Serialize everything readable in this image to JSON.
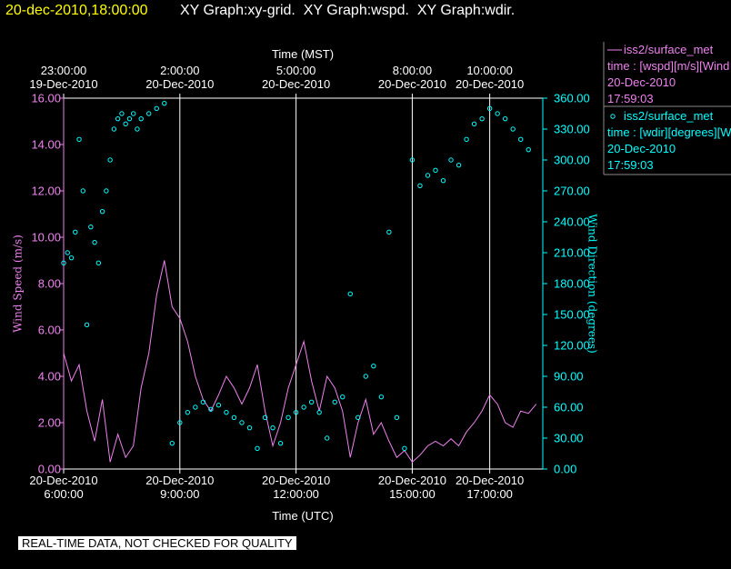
{
  "title_time": "20-dec-2010,18:00:00",
  "title": "XY Graph:xy-grid.  XY Graph:wspd.  XY Graph:wdir.",
  "notice": "REAL-TIME DATA, NOT CHECKED FOR QUALITY",
  "chart_data": {
    "type": "line",
    "xlabel": "Time (UTC)",
    "x2label": "Time (MST)",
    "ylabel": "Wind Speed (m/s)",
    "y2label": "Wind Direction (degrees)",
    "xlim": [
      6,
      18.37
    ],
    "ylim": [
      0,
      16
    ],
    "y2lim": [
      0,
      360
    ],
    "grid": true,
    "xticks": [
      {
        "value": 6,
        "label": "20-Dec-2010\n6:00:00"
      },
      {
        "value": 9,
        "label": "20-Dec-2010\n9:00:00"
      },
      {
        "value": 12,
        "label": "20-Dec-2010\n12:00:00"
      },
      {
        "value": 15,
        "label": "20-Dec-2010\n15:00:00"
      },
      {
        "value": 17,
        "label": "20-Dec-2010\n17:00:00"
      }
    ],
    "x2ticks": [
      {
        "value": 6,
        "label": "23:00:00\n19-Dec-2010"
      },
      {
        "value": 9,
        "label": "2:00:00\n20-Dec-2010"
      },
      {
        "value": 12,
        "label": "5:00:00\n20-Dec-2010"
      },
      {
        "value": 15,
        "label": "8:00:00\n20-Dec-2010"
      },
      {
        "value": 17,
        "label": "10:00:00\n20-Dec-2010"
      }
    ],
    "yticks": [
      {
        "value": 0,
        "label": "0.00"
      },
      {
        "value": 2,
        "label": "2.00"
      },
      {
        "value": 4,
        "label": "4.00"
      },
      {
        "value": 6,
        "label": "6.00"
      },
      {
        "value": 8,
        "label": "8.00"
      },
      {
        "value": 10,
        "label": "10.00"
      },
      {
        "value": 12,
        "label": "12.00"
      },
      {
        "value": 14,
        "label": "14.00"
      },
      {
        "value": 16,
        "label": "16.00"
      }
    ],
    "y2ticks": [
      {
        "value": 0,
        "label": "0.00"
      },
      {
        "value": 30,
        "label": "30.00"
      },
      {
        "value": 60,
        "label": "60.00"
      },
      {
        "value": 90,
        "label": "90.00"
      },
      {
        "value": 120,
        "label": "120.00"
      },
      {
        "value": 150,
        "label": "150.00"
      },
      {
        "value": 180,
        "label": "180.00"
      },
      {
        "value": 210,
        "label": "210.00"
      },
      {
        "value": 240,
        "label": "240.00"
      },
      {
        "value": 270,
        "label": "270.00"
      },
      {
        "value": 300,
        "label": "300.00"
      },
      {
        "value": 330,
        "label": "330.00"
      },
      {
        "value": 360,
        "label": "360.00"
      }
    ],
    "series": [
      {
        "name": "iss2/surface_met",
        "type": "line",
        "color": "#ee82ee",
        "details": [
          "time : [wspd][m/s][Wind",
          "20-Dec-2010",
          "17:59:03"
        ],
        "x": [
          6.0,
          6.2,
          6.4,
          6.6,
          6.8,
          7.0,
          7.2,
          7.4,
          7.6,
          7.8,
          8.0,
          8.2,
          8.4,
          8.6,
          8.8,
          9.0,
          9.2,
          9.4,
          9.6,
          9.8,
          10.0,
          10.2,
          10.4,
          10.6,
          10.8,
          11.0,
          11.2,
          11.4,
          11.6,
          11.8,
          12.0,
          12.2,
          12.4,
          12.6,
          12.8,
          13.0,
          13.2,
          13.4,
          13.6,
          13.8,
          14.0,
          14.2,
          14.4,
          14.6,
          14.8,
          15.0,
          15.2,
          15.4,
          15.6,
          15.8,
          16.0,
          16.2,
          16.4,
          16.6,
          16.8,
          17.0,
          17.2,
          17.4,
          17.6,
          17.8,
          18.0,
          18.2
        ],
        "values": [
          5.0,
          3.8,
          4.5,
          2.5,
          1.2,
          3.0,
          0.3,
          1.5,
          0.5,
          1.0,
          3.5,
          5.0,
          7.5,
          9.0,
          7.0,
          6.5,
          5.5,
          4.0,
          3.0,
          2.5,
          3.2,
          4.0,
          3.5,
          2.8,
          3.5,
          4.5,
          2.5,
          1.0,
          2.0,
          3.5,
          4.5,
          5.5,
          3.8,
          2.5,
          4.0,
          3.5,
          2.5,
          0.5,
          2.0,
          3.0,
          1.5,
          2.0,
          1.2,
          0.5,
          0.8,
          0.3,
          0.6,
          1.0,
          1.2,
          1.0,
          1.3,
          1.0,
          1.6,
          2.0,
          2.5,
          3.2,
          2.8,
          2.0,
          1.8,
          2.5,
          2.4,
          2.8
        ]
      },
      {
        "name": "iss2/surface_met",
        "type": "scatter",
        "axis": "y2",
        "color": "#00ffff",
        "details": [
          "time : [wdir][degrees][W",
          "20-Dec-2010",
          "17:59:03"
        ],
        "x": [
          6.0,
          6.1,
          6.2,
          6.3,
          6.4,
          6.5,
          6.6,
          6.7,
          6.8,
          6.9,
          7.0,
          7.1,
          7.2,
          7.3,
          7.4,
          7.5,
          7.6,
          7.7,
          7.8,
          7.9,
          8.0,
          8.2,
          8.4,
          8.6,
          8.8,
          9.0,
          9.2,
          9.4,
          9.6,
          9.8,
          10.0,
          10.2,
          10.4,
          10.6,
          10.8,
          11.0,
          11.2,
          11.4,
          11.6,
          11.8,
          12.0,
          12.2,
          12.4,
          12.6,
          12.8,
          13.0,
          13.2,
          13.4,
          13.6,
          13.8,
          14.0,
          14.2,
          14.4,
          14.6,
          14.8,
          15.0,
          15.2,
          15.4,
          15.6,
          15.8,
          16.0,
          16.2,
          16.4,
          16.6,
          16.8,
          17.0,
          17.2,
          17.4,
          17.6,
          17.8,
          18.0
        ],
        "values": [
          200,
          210,
          205,
          230,
          320,
          270,
          140,
          235,
          220,
          200,
          250,
          270,
          300,
          330,
          340,
          345,
          335,
          340,
          345,
          330,
          340,
          345,
          350,
          355,
          25,
          45,
          55,
          60,
          65,
          58,
          62,
          55,
          50,
          45,
          40,
          20,
          50,
          40,
          25,
          50,
          55,
          60,
          65,
          55,
          30,
          65,
          70,
          170,
          50,
          90,
          100,
          70,
          230,
          50,
          20,
          300,
          275,
          285,
          290,
          280,
          300,
          295,
          320,
          335,
          340,
          350,
          345,
          340,
          330,
          320,
          310
        ]
      }
    ]
  }
}
